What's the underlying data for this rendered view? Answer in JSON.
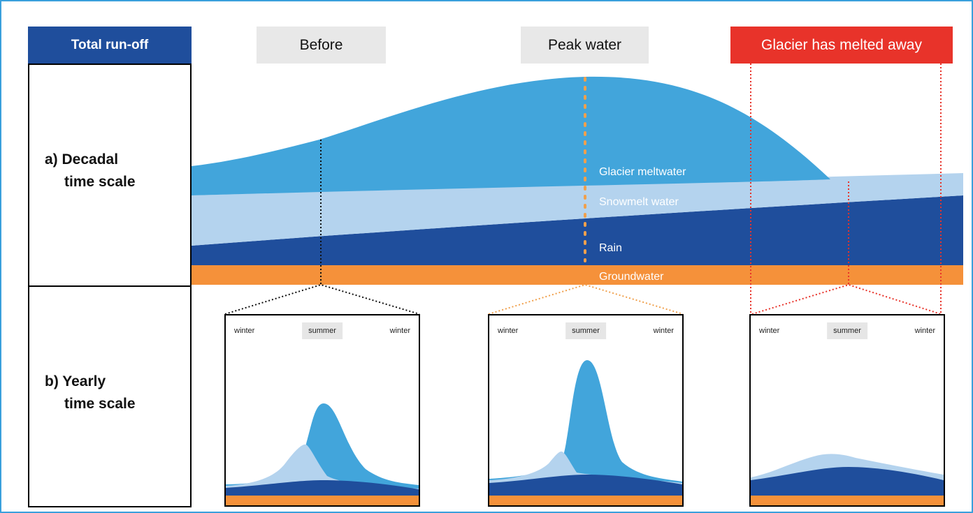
{
  "left_column": {
    "title": "Total run-off",
    "decadal_line1": "a) Decadal",
    "decadal_line2": "time scale",
    "yearly_line1": "b) Yearly",
    "yearly_line2": "time scale"
  },
  "phases": {
    "before": "Before",
    "peak": "Peak water",
    "melted": "Glacier has melted away"
  },
  "layers": {
    "glacier": "Glacier meltwater",
    "snow": "Snowmelt water",
    "rain": "Rain",
    "ground": "Groundwater"
  },
  "seasons": {
    "winter": "winter",
    "summer": "summer"
  },
  "colors": {
    "glacier_meltwater": "#42a5db",
    "snowmelt_water": "#b4d3ee",
    "rain": "#1f4e9c",
    "groundwater": "#f5913a",
    "before_marker": "#111111",
    "peak_marker": "#f0a04c",
    "melted_marker": "#e8332a"
  }
}
